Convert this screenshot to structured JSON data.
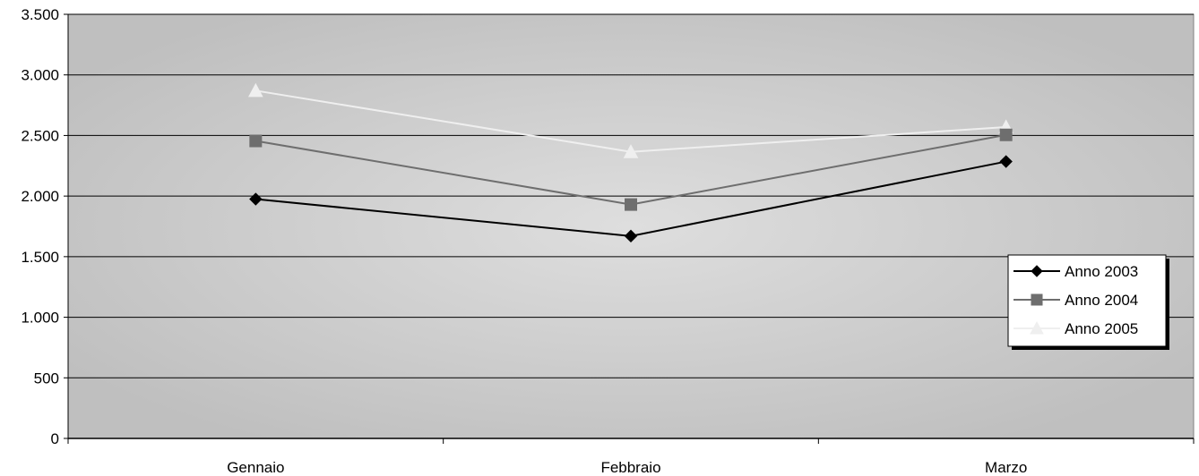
{
  "chart_data": {
    "type": "line",
    "title": "",
    "xlabel": "",
    "ylabel": "",
    "categories": [
      "Gennaio",
      "Febbraio",
      "Marzo"
    ],
    "y_ticks": [
      0,
      500,
      1000,
      1500,
      2000,
      2500,
      3000,
      3500
    ],
    "y_tick_labels": [
      "0",
      "500",
      "1.000",
      "1.500",
      "2.000",
      "2.500",
      "3.000",
      "3.500"
    ],
    "ylim": [
      0,
      3500
    ],
    "grid": true,
    "legend_position": "right",
    "series": [
      {
        "name": "Anno 2003",
        "values": [
          1975,
          1670,
          2285
        ],
        "color": "#000000",
        "marker": "diamond"
      },
      {
        "name": "Anno 2004",
        "values": [
          2455,
          1930,
          2505
        ],
        "color": "#6e6e6e",
        "marker": "square"
      },
      {
        "name": "Anno 2005",
        "values": [
          2870,
          2365,
          2570
        ],
        "color": "#efefef",
        "marker": "triangle"
      }
    ],
    "plot_colors": {
      "background_outer": "#bfbfbf",
      "background_inner": "#dedede",
      "gridline": "#000000"
    }
  }
}
